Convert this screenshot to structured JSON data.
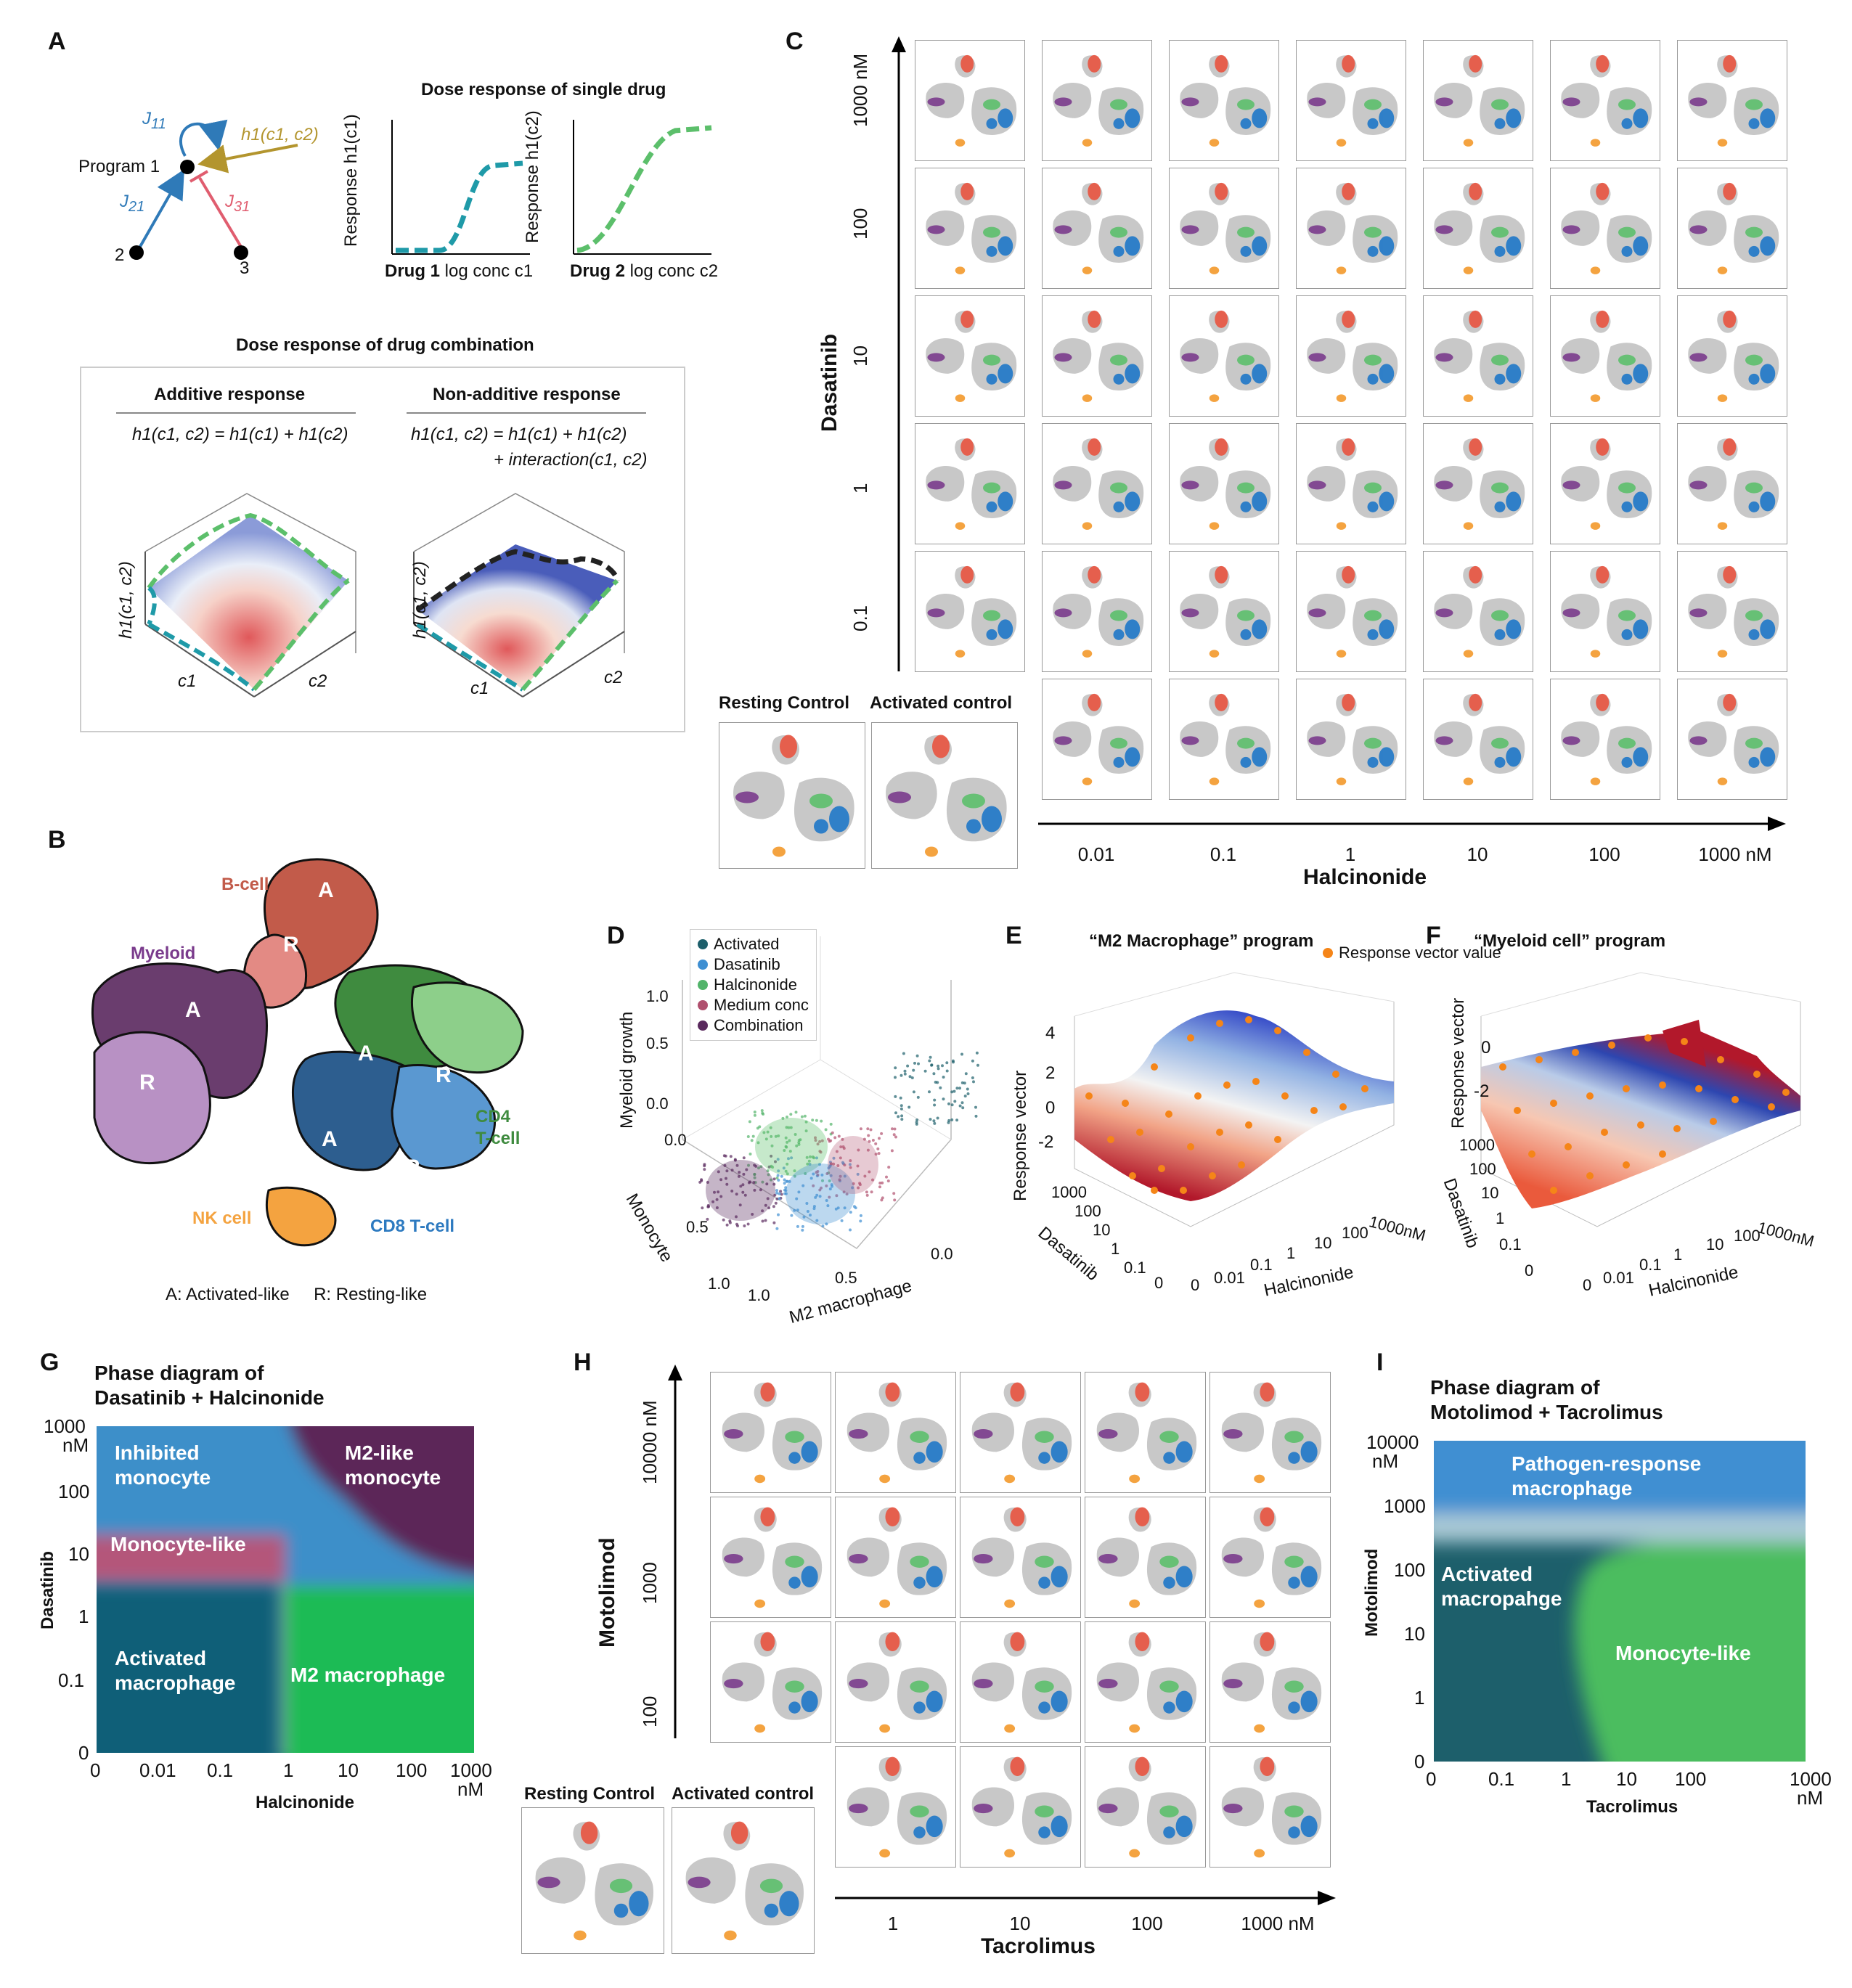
{
  "panel_labels": [
    "A",
    "B",
    "C",
    "D",
    "E",
    "F",
    "G",
    "H",
    "I"
  ],
  "panelA": {
    "program_label": "Program 1",
    "node2": "2",
    "node3": "3",
    "j11": "J",
    "j11_sub": "11",
    "j21": "J",
    "j21_sub": "21",
    "j31": "J",
    "j31_sub": "31",
    "h_input": "h1(c1, c2)",
    "single_title": "Dose response of single drug",
    "ylabel1": "Response h1(c1)",
    "ylabel2": "Response h1(c2)",
    "xlabel1_bold": "Drug 1",
    "xlabel1_rest": " log conc c1",
    "xlabel2_bold": "Drug 2",
    "xlabel2_rest": " log conc c2",
    "combo_title": "Dose response of drug combination",
    "additive_title": "Additive response",
    "additive_eq": "h1(c1, c2) = h1(c1) + h1(c2)",
    "nonadditive_title": "Non-additive response",
    "nonadditive_eq1": "h1(c1, c2) = h1(c1) + h1(c2)",
    "nonadditive_eq2": "+ interaction(c1, c2)",
    "surf_z": "h1(c1, c2)",
    "surf_x": "c1",
    "surf_y": "c2"
  },
  "panelB": {
    "bcell": "B-cell",
    "myeloid": "Myeloid",
    "cd4": "CD4",
    "cd4b": "T-cell",
    "nk": "NK cell",
    "cd8": "CD8 T-cell",
    "A": "A",
    "R": "R",
    "legend": "A: Activated-like     R: Resting-like"
  },
  "panelC": {
    "y_axis_label": "Dasatinib",
    "y_ticks": [
      "1000 nM",
      "100",
      "10",
      "1",
      "0.1"
    ],
    "x_axis_label": "Halcinonide",
    "x_ticks": [
      "0.01",
      "0.1",
      "1",
      "10",
      "100",
      "1000 nM"
    ],
    "resting": "Resting Control",
    "activated": "Activated control"
  },
  "panelD": {
    "legend": [
      "Activated",
      "Dasatinib",
      "Halcinonide",
      "Medium conc",
      "Combination"
    ],
    "legend_colors": [
      "#1d5f6b",
      "#3f8fd2",
      "#52b46a",
      "#b0506e",
      "#5a2a5e"
    ],
    "zlabel": "Myeloid growth",
    "ylabel": "Monocyte",
    "xlabel": "M2 macrophage",
    "zticks": [
      "1.0",
      "0.5",
      "0.0"
    ],
    "yticks": [
      "0.0",
      "0.5",
      "1.0"
    ],
    "xticks": [
      "1.0",
      "0.5",
      "0.0"
    ]
  },
  "panelE": {
    "title": "“M2 Macrophage” program",
    "legend": "Response vector value",
    "zlabel": "Response vector",
    "zticks": [
      "4",
      "2",
      "0",
      "-2"
    ],
    "ylabel": "Dasatinib",
    "yticks": [
      "1000",
      "100",
      "10",
      "1",
      "0.1",
      "0"
    ],
    "xlabel": "Halcinonide",
    "xticks": [
      "0",
      "0.01",
      "0.1",
      "1",
      "10",
      "100",
      "1000nM"
    ]
  },
  "panelF": {
    "title": "“Myeloid cell” program",
    "zlabel": "Response vector",
    "zticks": [
      "0",
      "-2"
    ],
    "ylabel": "Dasatinib",
    "yticks": [
      "1000",
      "100",
      "10",
      "1",
      "0.1",
      "0"
    ],
    "xlabel": "Halcinonide",
    "xticks": [
      "0",
      "0.01",
      "0.1",
      "1",
      "10",
      "100",
      "1000nM"
    ]
  },
  "panelG": {
    "title1": "Phase diagram of",
    "title2": "Dasatinib + Halcinonide",
    "regions": [
      "Inhibited monocyte",
      "M2-like monocyte",
      "Monocyte-like",
      "Activated macrophage",
      "M2 macrophage"
    ],
    "ylabel": "Dasatinib",
    "yticks": [
      "1000",
      "100",
      "10",
      "1",
      "0.1",
      "0"
    ],
    "yunit": "nM",
    "xlabel": "Halcinonide",
    "xticks": [
      "0",
      "0.01",
      "0.1",
      "1",
      "10",
      "100",
      "1000"
    ],
    "xunit": "nM"
  },
  "panelH": {
    "y_axis_label": "Motolimod",
    "y_ticks": [
      "10000 nM",
      "1000",
      "100"
    ],
    "x_axis_label": "Tacrolimus",
    "x_ticks": [
      "1",
      "10",
      "100",
      "1000 nM"
    ],
    "resting": "Resting Control",
    "activated": "Activated control"
  },
  "panelI": {
    "title1": "Phase diagram of",
    "title2": "Motolimod + Tacrolimus",
    "regions": [
      "Pathogen-response macrophage",
      "Activated macropahge",
      "Monocyte-like"
    ],
    "ylabel": "Motolimod",
    "yticks": [
      "10000",
      "1000",
      "100",
      "10",
      "1",
      "0"
    ],
    "yunit": "nM",
    "xlabel": "Tacrolimus",
    "xticks": [
      "0",
      "0.1",
      "1",
      "10",
      "100",
      "1000"
    ],
    "xunit": "nM"
  },
  "colors": {
    "bcell": "#e8533f",
    "myeloid": "#7a3b8c",
    "cd4": "#5cbf6b",
    "cd8": "#1f78c8",
    "nk": "#f4a340",
    "gray": "#c8c8c8"
  }
}
